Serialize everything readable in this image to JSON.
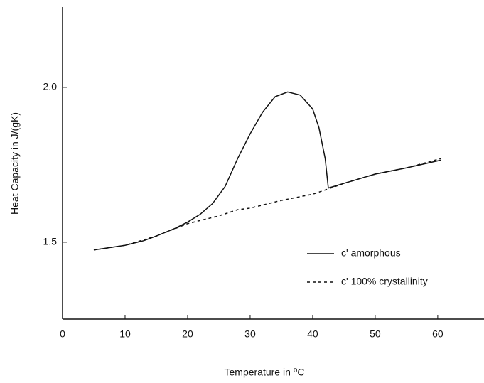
{
  "chart_data": {
    "type": "line",
    "y_label": "Heat Capacity in J/(gK)",
    "x_label": "Temperature in ⁰C",
    "xlim": [
      0,
      67.4
    ],
    "ylim": [
      1.252,
      2.259
    ],
    "xticks": [
      0,
      10,
      20,
      30,
      40,
      50,
      60
    ],
    "yticks": [
      1.5,
      {
        "value": 2.0,
        "label": "2.0"
      }
    ],
    "series": [
      {
        "name": "c' amorphous",
        "color": "#111111",
        "dash": "none",
        "x": [
          5,
          10,
          13,
          15,
          18,
          20,
          22,
          24,
          26,
          28,
          30,
          32,
          34,
          36,
          38,
          40,
          41,
          42,
          42.5,
          45,
          50,
          55,
          60.5
        ],
        "values": [
          1.475,
          1.49,
          1.505,
          1.52,
          1.545,
          1.565,
          1.59,
          1.625,
          1.68,
          1.77,
          1.85,
          1.92,
          1.97,
          1.985,
          1.975,
          1.93,
          1.87,
          1.77,
          1.675,
          1.69,
          1.72,
          1.74,
          1.765
        ]
      },
      {
        "name": "c' 100% crystallinity",
        "color": "#111111",
        "dash": "4,4",
        "x": [
          5,
          10,
          15,
          20,
          25,
          28,
          30,
          35,
          40,
          42.5,
          45,
          50,
          55,
          60.5
        ],
        "values": [
          1.475,
          1.49,
          1.52,
          1.56,
          1.585,
          1.605,
          1.61,
          1.635,
          1.655,
          1.672,
          1.69,
          1.72,
          1.74,
          1.77
        ]
      }
    ]
  }
}
